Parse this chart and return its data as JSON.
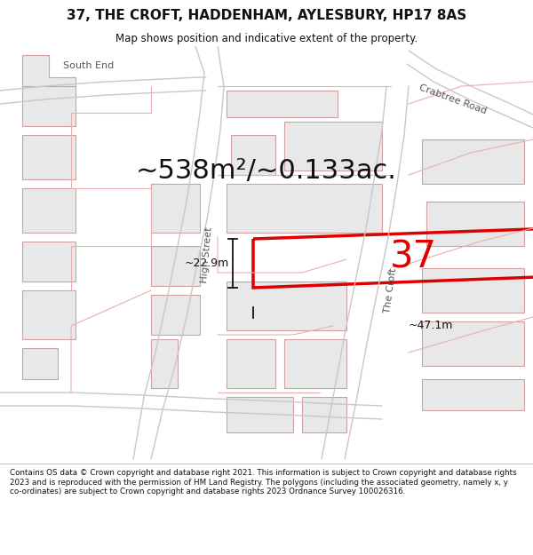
{
  "title": "37, THE CROFT, HADDENHAM, AYLESBURY, HP17 8AS",
  "subtitle": "Map shows position and indicative extent of the property.",
  "area_text": "~538m²/~0.133ac.",
  "label_37": "37",
  "dim_width": "~47.1m",
  "dim_height": "~22.9m",
  "copyright_text": "Contains OS data © Crown copyright and database right 2021. This information is subject to Crown copyright and database rights 2023 and is reproduced with the permission of HM Land Registry. The polygons (including the associated geometry, namely x, y co-ordinates) are subject to Crown copyright and database rights 2023 Ordnance Survey 100026316.",
  "map_bg": "#ffffff",
  "building_fill": "#e8e8e8",
  "building_edge": "#d0a0a0",
  "road_line_color": "#c8c8c8",
  "road_outline_color": "#e8b0b0",
  "property_color": "#dd0000",
  "text_color": "#555555",
  "dim_color": "#111111",
  "title_fontsize": 11,
  "subtitle_fontsize": 8.5,
  "area_fontsize": 22,
  "label_fontsize": 30,
  "dim_fontsize": 9,
  "street_fontsize": 8
}
